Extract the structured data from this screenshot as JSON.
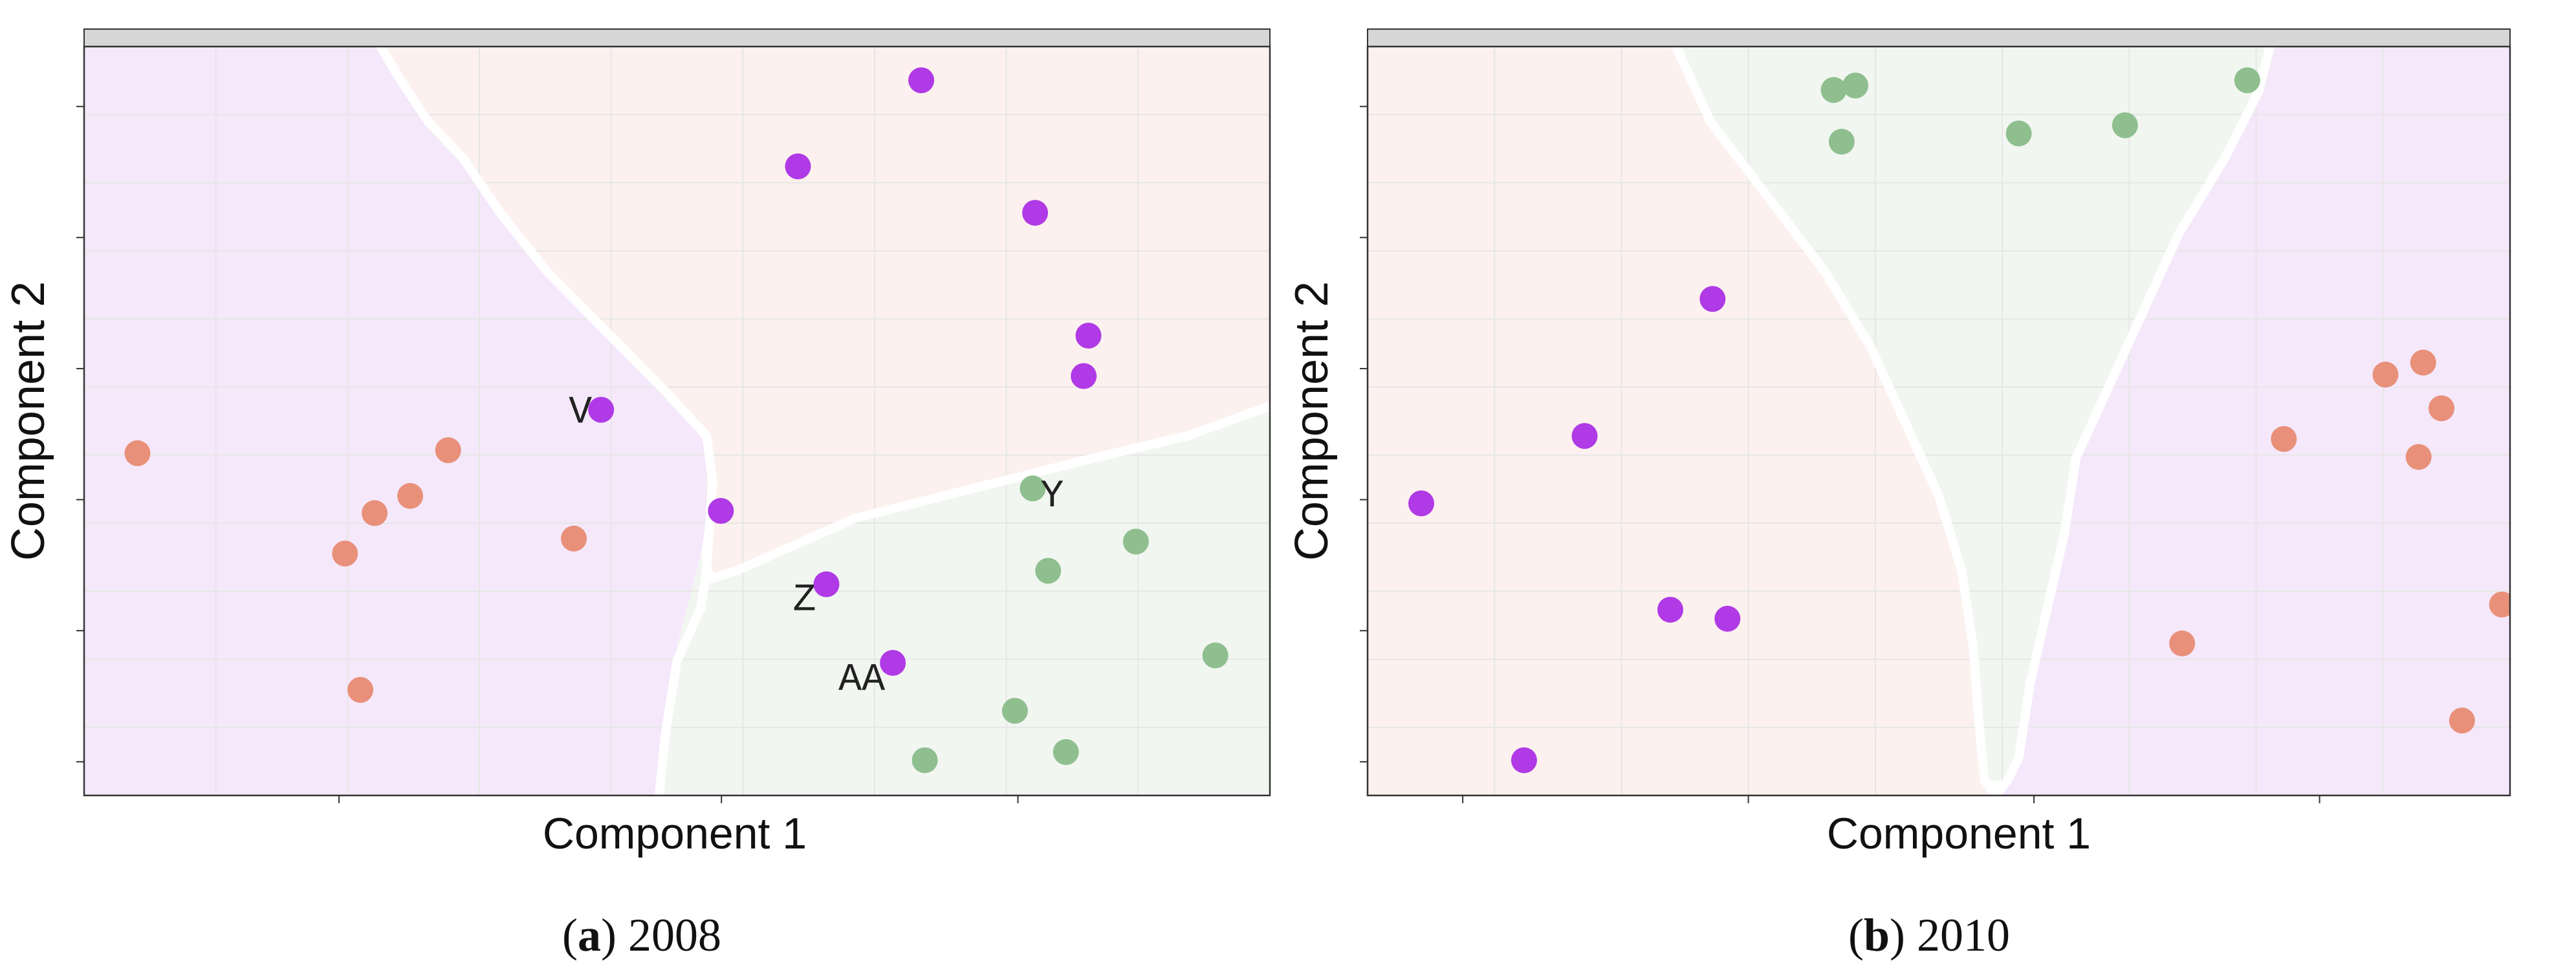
{
  "colors": {
    "purple": "#b03ae6",
    "orange": "#e8907a",
    "green": "#8fbf8f",
    "region_purple": "#f5e8fb",
    "region_orange": "#fcf1ee",
    "region_green": "#f2f6f1",
    "strip": "#d6d6d6",
    "grid": "#e6e6e6",
    "frame": "#333333"
  },
  "chart_data": [
    {
      "type": "scatter",
      "caption_letter": "a",
      "caption_text": " 2008",
      "xlabel": "Component 1",
      "ylabel": "Component 2",
      "xlim": [
        0,
        100
      ],
      "ylim": [
        0,
        100
      ],
      "grid": true,
      "regions": [
        {
          "color": "purple",
          "polygon": [
            [
              0,
              100
            ],
            [
              25,
              100
            ],
            [
              26.5,
              96
            ],
            [
              29,
              90
            ],
            [
              32,
              85
            ],
            [
              35,
              78
            ],
            [
              39,
              70
            ],
            [
              44,
              62
            ],
            [
              49,
              54
            ],
            [
              52.5,
              48
            ],
            [
              53,
              42
            ],
            [
              52,
              32
            ],
            [
              50,
              20
            ],
            [
              49,
              7
            ],
            [
              48.5,
              0
            ],
            [
              0,
              0
            ]
          ]
        },
        {
          "color": "orange",
          "polygon": [
            [
              25,
              100
            ],
            [
              100,
              100
            ],
            [
              100,
              52
            ],
            [
              93,
              48
            ],
            [
              85,
              45
            ],
            [
              75,
              41
            ],
            [
              65,
              37
            ],
            [
              55,
              30
            ],
            [
              53,
              29
            ],
            [
              52.5,
              33
            ],
            [
              52.5,
              48
            ],
            [
              49,
              54
            ],
            [
              44,
              62
            ],
            [
              39,
              70
            ],
            [
              35,
              78
            ],
            [
              32,
              85
            ],
            [
              29,
              90
            ],
            [
              26.5,
              96
            ]
          ]
        },
        {
          "color": "green",
          "polygon": [
            [
              53,
              29
            ],
            [
              55,
              30
            ],
            [
              65,
              37
            ],
            [
              75,
              41
            ],
            [
              85,
              45
            ],
            [
              93,
              48
            ],
            [
              100,
              52
            ],
            [
              100,
              0
            ],
            [
              48.5,
              0
            ],
            [
              49,
              7
            ],
            [
              50,
              20
            ],
            [
              52,
              32
            ]
          ]
        }
      ],
      "boundaries": [
        [
          [
            25,
            100
          ],
          [
            26.5,
            96
          ],
          [
            29,
            90
          ],
          [
            32,
            85
          ],
          [
            35,
            78
          ],
          [
            39,
            70
          ],
          [
            44,
            62
          ],
          [
            49,
            54
          ],
          [
            52.5,
            48
          ],
          [
            53,
            42
          ],
          [
            52.5,
            30
          ]
        ],
        [
          [
            52.5,
            30
          ],
          [
            53,
            29
          ],
          [
            55,
            30
          ],
          [
            65,
            37
          ],
          [
            75,
            41
          ],
          [
            85,
            45
          ],
          [
            93,
            48
          ],
          [
            100,
            52
          ]
        ],
        [
          [
            52.5,
            30
          ],
          [
            52,
            25
          ],
          [
            50,
            18
          ],
          [
            49,
            8
          ],
          [
            48.5,
            0
          ]
        ]
      ],
      "points": [
        {
          "x": 70.6,
          "y": 95.5,
          "c": "purple"
        },
        {
          "x": 60.2,
          "y": 84.0,
          "c": "purple"
        },
        {
          "x": 80.2,
          "y": 77.8,
          "c": "purple"
        },
        {
          "x": 84.7,
          "y": 61.4,
          "c": "purple"
        },
        {
          "x": 84.3,
          "y": 56.0,
          "c": "purple"
        },
        {
          "x": 43.6,
          "y": 51.5,
          "c": "purple",
          "label": "V",
          "ldx": -32,
          "ldy": 2
        },
        {
          "x": 53.7,
          "y": 38.0,
          "c": "purple"
        },
        {
          "x": 62.6,
          "y": 28.2,
          "c": "purple",
          "label": "Z",
          "ldx": -34,
          "ldy": 22
        },
        {
          "x": 68.2,
          "y": 17.7,
          "c": "purple",
          "label": "AA",
          "ldx": -48,
          "ldy": 24
        },
        {
          "x": 80.0,
          "y": 41.0,
          "c": "green",
          "label": "Y",
          "ldx": 30,
          "ldy": 10
        },
        {
          "x": 88.7,
          "y": 33.9,
          "c": "green"
        },
        {
          "x": 81.3,
          "y": 30.0,
          "c": "green"
        },
        {
          "x": 95.4,
          "y": 18.7,
          "c": "green"
        },
        {
          "x": 78.5,
          "y": 11.3,
          "c": "green"
        },
        {
          "x": 70.9,
          "y": 4.7,
          "c": "green"
        },
        {
          "x": 82.8,
          "y": 5.8,
          "c": "green"
        },
        {
          "x": 4.5,
          "y": 45.7,
          "c": "orange"
        },
        {
          "x": 30.7,
          "y": 46.1,
          "c": "orange"
        },
        {
          "x": 27.5,
          "y": 40.0,
          "c": "orange"
        },
        {
          "x": 24.5,
          "y": 37.7,
          "c": "orange"
        },
        {
          "x": 22.0,
          "y": 32.3,
          "c": "orange"
        },
        {
          "x": 41.3,
          "y": 34.3,
          "c": "orange"
        },
        {
          "x": 23.3,
          "y": 14.1,
          "c": "orange"
        }
      ]
    },
    {
      "type": "scatter",
      "caption_letter": "b",
      "caption_text": " 2010",
      "xlabel": "Component 1",
      "ylabel": "Component 2",
      "xlim": [
        0,
        100
      ],
      "ylim": [
        0,
        100
      ],
      "grid": true,
      "regions": [
        {
          "color": "orange",
          "polygon": [
            [
              0,
              100
            ],
            [
              27,
              100
            ],
            [
              30,
              90
            ],
            [
              35,
              80
            ],
            [
              40,
              70
            ],
            [
              44,
              60
            ],
            [
              47,
              50
            ],
            [
              50,
              40
            ],
            [
              52,
              30
            ],
            [
              53,
              20
            ],
            [
              53.5,
              10
            ],
            [
              54,
              2
            ],
            [
              54.5,
              0
            ],
            [
              0,
              0
            ]
          ]
        },
        {
          "color": "green",
          "polygon": [
            [
              27,
              100
            ],
            [
              79,
              100
            ],
            [
              78,
              94
            ],
            [
              75,
              85
            ],
            [
              71,
              75
            ],
            [
              68,
              65
            ],
            [
              65,
              55
            ],
            [
              62,
              45
            ],
            [
              61,
              35
            ],
            [
              59.5,
              25
            ],
            [
              58,
              15
            ],
            [
              57,
              5
            ],
            [
              56,
              2
            ],
            [
              54,
              2
            ],
            [
              53.5,
              10
            ],
            [
              53,
              20
            ],
            [
              52,
              30
            ],
            [
              50,
              40
            ],
            [
              47,
              50
            ],
            [
              44,
              60
            ],
            [
              40,
              70
            ],
            [
              35,
              80
            ],
            [
              30,
              90
            ]
          ]
        },
        {
          "color": "purple",
          "polygon": [
            [
              79,
              100
            ],
            [
              100,
              100
            ],
            [
              100,
              0
            ],
            [
              54.5,
              0
            ],
            [
              56,
              2
            ],
            [
              57,
              5
            ],
            [
              58,
              15
            ],
            [
              59.5,
              25
            ],
            [
              61,
              35
            ],
            [
              62,
              45
            ],
            [
              65,
              55
            ],
            [
              68,
              65
            ],
            [
              71,
              75
            ],
            [
              75,
              85
            ],
            [
              78,
              94
            ]
          ]
        }
      ],
      "boundaries": [
        [
          [
            27,
            100
          ],
          [
            30,
            90
          ],
          [
            35,
            80
          ],
          [
            40,
            70
          ],
          [
            44,
            60
          ],
          [
            47,
            50
          ],
          [
            50,
            40
          ],
          [
            52,
            30
          ],
          [
            53,
            20
          ],
          [
            53.5,
            10
          ],
          [
            54,
            2
          ],
          [
            55,
            0
          ]
        ],
        [
          [
            79,
            100
          ],
          [
            78,
            94
          ],
          [
            75,
            85
          ],
          [
            71,
            75
          ],
          [
            68,
            65
          ],
          [
            65,
            55
          ],
          [
            62,
            45
          ],
          [
            61,
            35
          ],
          [
            59.5,
            25
          ],
          [
            58,
            15
          ],
          [
            57,
            5
          ],
          [
            56,
            2
          ],
          [
            55,
            0
          ]
        ]
      ],
      "points": [
        {
          "x": 40.8,
          "y": 94.2,
          "c": "green"
        },
        {
          "x": 42.7,
          "y": 94.8,
          "c": "green"
        },
        {
          "x": 41.5,
          "y": 87.3,
          "c": "green"
        },
        {
          "x": 57.0,
          "y": 88.4,
          "c": "green"
        },
        {
          "x": 66.3,
          "y": 89.5,
          "c": "green"
        },
        {
          "x": 77.0,
          "y": 95.5,
          "c": "green"
        },
        {
          "x": 30.2,
          "y": 66.3,
          "c": "purple"
        },
        {
          "x": 19.0,
          "y": 48.0,
          "c": "purple"
        },
        {
          "x": 4.7,
          "y": 39.0,
          "c": "purple"
        },
        {
          "x": 26.5,
          "y": 24.8,
          "c": "purple"
        },
        {
          "x": 31.5,
          "y": 23.6,
          "c": "purple"
        },
        {
          "x": 13.7,
          "y": 4.7,
          "c": "purple"
        },
        {
          "x": 89.1,
          "y": 56.2,
          "c": "orange"
        },
        {
          "x": 92.4,
          "y": 57.8,
          "c": "orange"
        },
        {
          "x": 94.0,
          "y": 51.7,
          "c": "orange"
        },
        {
          "x": 80.2,
          "y": 47.6,
          "c": "orange"
        },
        {
          "x": 92.0,
          "y": 45.2,
          "c": "orange"
        },
        {
          "x": 71.3,
          "y": 20.3,
          "c": "orange"
        },
        {
          "x": 99.3,
          "y": 25.5,
          "c": "orange"
        },
        {
          "x": 95.8,
          "y": 10.0,
          "c": "orange"
        }
      ]
    }
  ]
}
